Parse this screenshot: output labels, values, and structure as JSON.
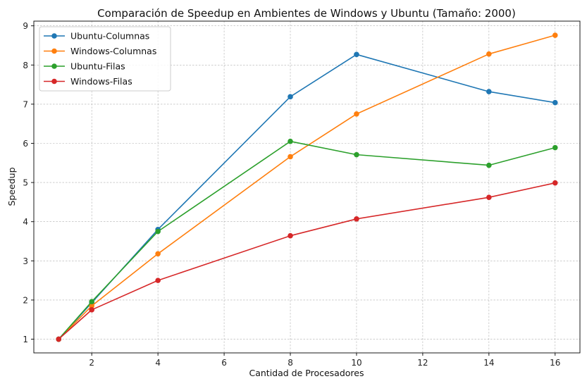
{
  "chart_data": {
    "type": "line",
    "title": "Comparación de Speedup en Ambientes de Windows y Ubuntu (Tamaño: 2000)",
    "xlabel": "Cantidad de Procesadores",
    "ylabel": "Speedup",
    "x": [
      1,
      2,
      4,
      8,
      10,
      14,
      16
    ],
    "xlim": [
      0.25,
      16.75
    ],
    "ylim": [
      0.65,
      9.12
    ],
    "xticks": [
      2,
      4,
      6,
      8,
      10,
      12,
      14,
      16
    ],
    "yticks": [
      1,
      2,
      3,
      4,
      5,
      6,
      7,
      8,
      9
    ],
    "grid": true,
    "legend_position": "top-left",
    "series": [
      {
        "name": "Ubuntu-Columnas",
        "color": "#1f77b4",
        "values": [
          1.0,
          1.93,
          3.8,
          7.19,
          8.27,
          7.32,
          7.04
        ]
      },
      {
        "name": "Windows-Columnas",
        "color": "#ff7f0e",
        "values": [
          1.0,
          1.85,
          3.18,
          5.66,
          6.75,
          8.28,
          8.76
        ]
      },
      {
        "name": "Ubuntu-Filas",
        "color": "#2ca02c",
        "values": [
          1.0,
          1.96,
          3.75,
          6.05,
          5.71,
          5.44,
          5.89
        ]
      },
      {
        "name": "Windows-Filas",
        "color": "#d62728",
        "values": [
          1.0,
          1.75,
          2.5,
          3.64,
          4.07,
          4.62,
          4.99
        ]
      }
    ]
  }
}
